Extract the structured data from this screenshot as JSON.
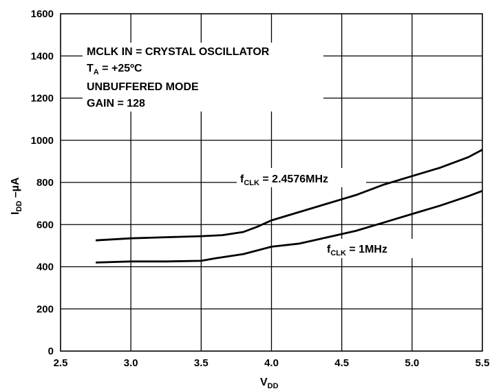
{
  "chart_data": {
    "type": "line",
    "xlabel": {
      "main": "V",
      "sub": "DD"
    },
    "ylabel": {
      "main": "I",
      "sub": "DD",
      "rest": " –µA"
    },
    "xlim": [
      2.5,
      5.5
    ],
    "ylim": [
      0,
      1600
    ],
    "x_ticks": [
      "2.5",
      "3.0",
      "3.5",
      "4.0",
      "4.5",
      "5.0",
      "5.5"
    ],
    "y_ticks": [
      "0",
      "200",
      "400",
      "600",
      "800",
      "1000",
      "1200",
      "1400",
      "1600"
    ],
    "grid": true,
    "conditions": {
      "line1": "MCLK IN = CRYSTAL  OSCILLATOR",
      "line2_main": "T",
      "line2_sub": "A",
      "line2_rest": " = +25ºC",
      "line3": "UNBUFFERED MODE",
      "line4": "GAIN = 128"
    },
    "series": [
      {
        "label_main": "f",
        "label_sub": "CLK",
        "label_rest": " = 2.4576MHz",
        "x": [
          2.75,
          3.0,
          3.25,
          3.5,
          3.65,
          3.8,
          3.9,
          4.0,
          4.2,
          4.4,
          4.6,
          4.8,
          5.0,
          5.2,
          5.4,
          5.5
        ],
        "y": [
          525,
          535,
          540,
          545,
          550,
          565,
          590,
          620,
          660,
          700,
          740,
          790,
          830,
          870,
          920,
          955
        ]
      },
      {
        "label_main": "f",
        "label_sub": "CLK",
        "label_rest": " = 1MHz",
        "x": [
          2.75,
          3.0,
          3.25,
          3.5,
          3.6,
          3.8,
          4.0,
          4.2,
          4.4,
          4.6,
          4.8,
          5.0,
          5.2,
          5.4,
          5.5
        ],
        "y": [
          420,
          425,
          425,
          428,
          440,
          460,
          495,
          510,
          540,
          570,
          610,
          650,
          690,
          735,
          760
        ]
      }
    ]
  }
}
